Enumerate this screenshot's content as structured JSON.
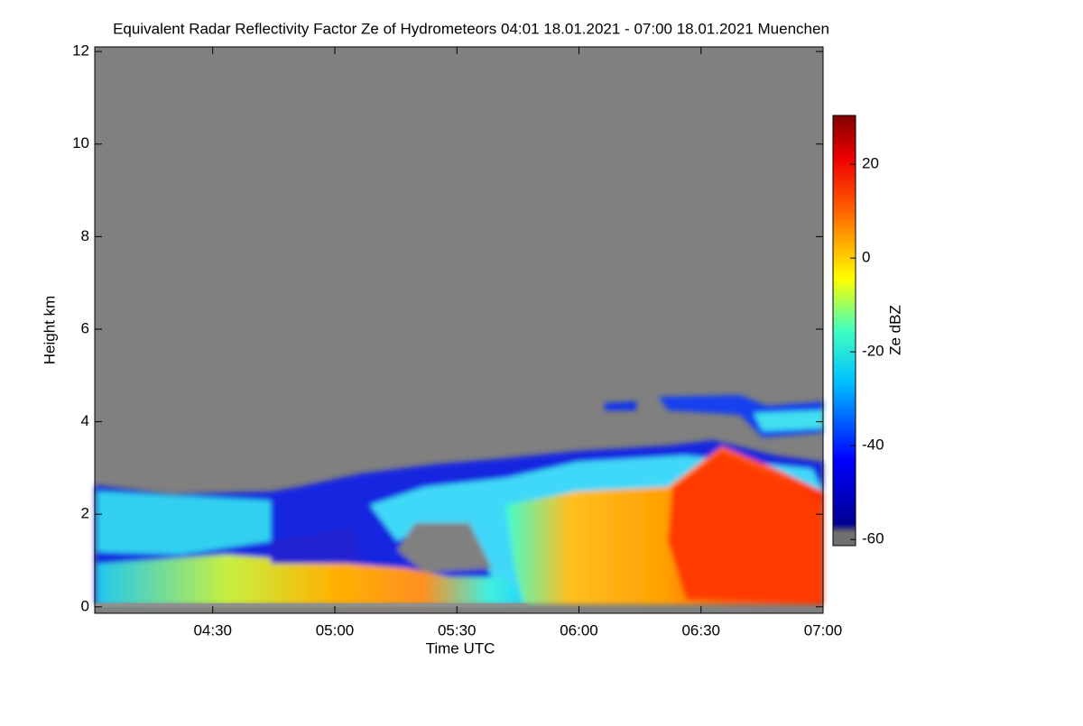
{
  "chart_data": {
    "type": "heatmap",
    "title": "Equivalent Radar Reflectivity Factor Ze of Hydrometeors   04:01 18.01.2021 - 07:00 18.01.2021 Muenchen",
    "xlabel": "Time UTC",
    "ylabel": "Height km",
    "colorbar_label": "Ze dBZ",
    "xlim": [
      241,
      420
    ],
    "xticks": [
      {
        "value": 270,
        "label": "04:30"
      },
      {
        "value": 300,
        "label": "05:00"
      },
      {
        "value": 330,
        "label": "05:30"
      },
      {
        "value": 360,
        "label": "06:00"
      },
      {
        "value": 390,
        "label": "06:30"
      },
      {
        "value": 420,
        "label": "07:00"
      }
    ],
    "ylim": [
      -0.14,
      12.1
    ],
    "yticks": [
      0,
      2,
      4,
      6,
      8,
      10,
      12
    ],
    "clim": [
      -61.3,
      30.4
    ],
    "cticks": [
      -60,
      -40,
      -20,
      0,
      20
    ]
  }
}
